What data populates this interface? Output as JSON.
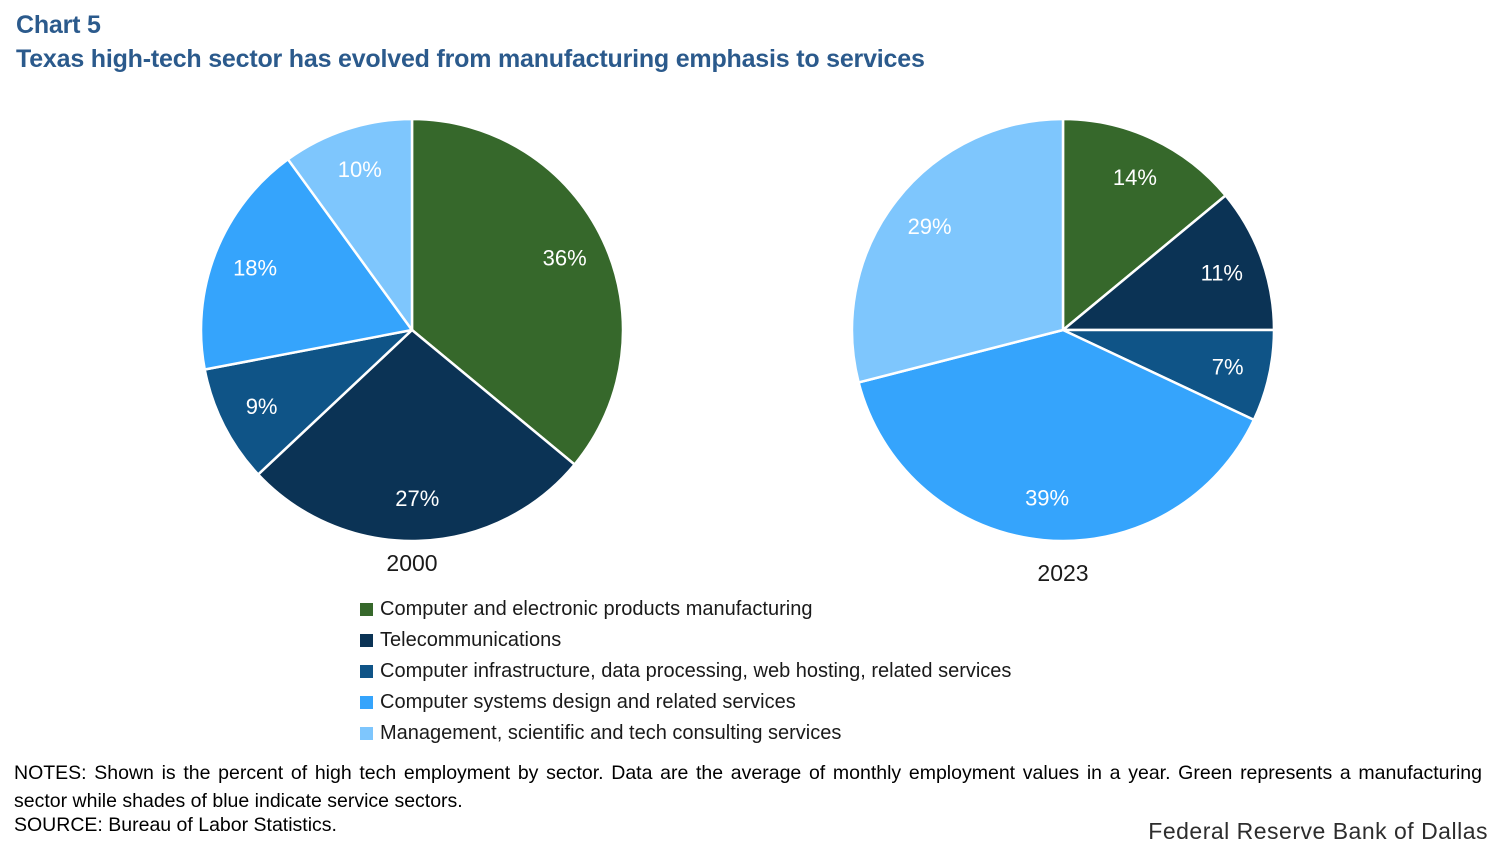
{
  "header": {
    "chart_label": "Chart 5",
    "title": "Texas high-tech sector has evolved from manufacturing emphasis to services"
  },
  "chart_data": {
    "type": "pie",
    "title": "Texas high-tech sector has evolved from manufacturing emphasis to services",
    "categories": [
      "Computer and electronic products manufacturing",
      "Telecommunications",
      "Computer infrastructure, data processing, web hosting, related services",
      "Computer systems design and related services",
      "Management, scientific and tech consulting services"
    ],
    "colors": [
      "#36682b",
      "#0b3355",
      "#0f5487",
      "#35a4fc",
      "#7ec6fd"
    ],
    "value_suffix": "%",
    "layout_hints": {
      "start_angle_deg": 0,
      "direction": "clockwise",
      "slice_border_color": "#ffffff",
      "legend_position": "bottom-left"
    },
    "charts": [
      {
        "label": "2000",
        "values": [
          36,
          27,
          9,
          18,
          10
        ]
      },
      {
        "label": "2023",
        "values": [
          14,
          11,
          7,
          39,
          29
        ]
      }
    ]
  },
  "notes": {
    "notes_text": "NOTES: Shown is the percent of high tech employment by sector. Data are the average of monthly employment values in a year. Green represents a manufacturing  sector while shades of blue indicate service sectors.",
    "source_text": "SOURCE: Bureau of Labor Statistics."
  },
  "footer": {
    "branding": "Federal Reserve Bank of Dallas"
  }
}
